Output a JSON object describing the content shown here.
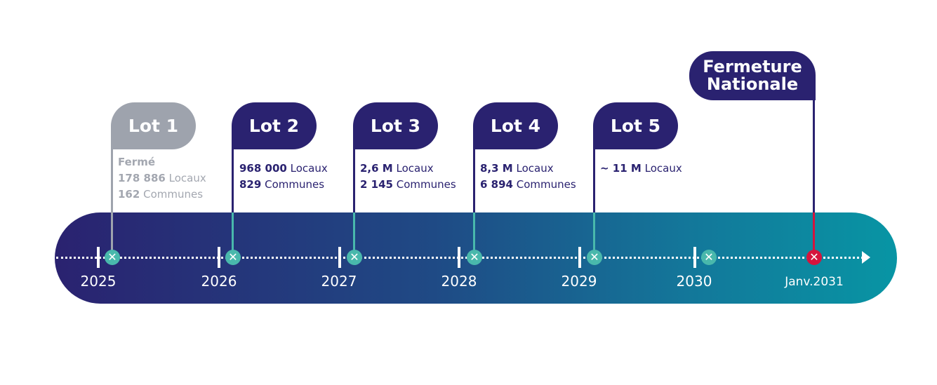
{
  "lots": [
    {
      "label": "Lot 1",
      "status": "Fermé",
      "line1_value": "178 886",
      "line1_label": "Locaux",
      "line2_value": "162",
      "line2_label": "Communes"
    },
    {
      "label": "Lot 2",
      "line1_value": "968 000",
      "line1_label": "Locaux",
      "line2_value": "829",
      "line2_label": "Communes"
    },
    {
      "label": "Lot 3",
      "line1_value": "2,6 M",
      "line1_label": "Locaux",
      "line2_value": "2 145",
      "line2_label": "Communes"
    },
    {
      "label": "Lot 4",
      "line1_value": "8,3 M",
      "line1_label": "Locaux",
      "line2_value": "6 894",
      "line2_label": "Communes"
    },
    {
      "label": "Lot 5",
      "line1_value": "~ 11 M",
      "line1_label": "Locaux"
    }
  ],
  "final": {
    "line1": "Fermeture",
    "line2": "Nationale"
  },
  "years": [
    "2025",
    "2026",
    "2027",
    "2028",
    "2029",
    "2030",
    "Janv.2031"
  ],
  "colors": {
    "dark": "#2a2270",
    "gray": "#9ea3ad",
    "teal": "#49b8ac",
    "red": "#d5143d"
  },
  "icons": {
    "marker": "cross-circle-icon",
    "end": "arrow-right-icon"
  }
}
